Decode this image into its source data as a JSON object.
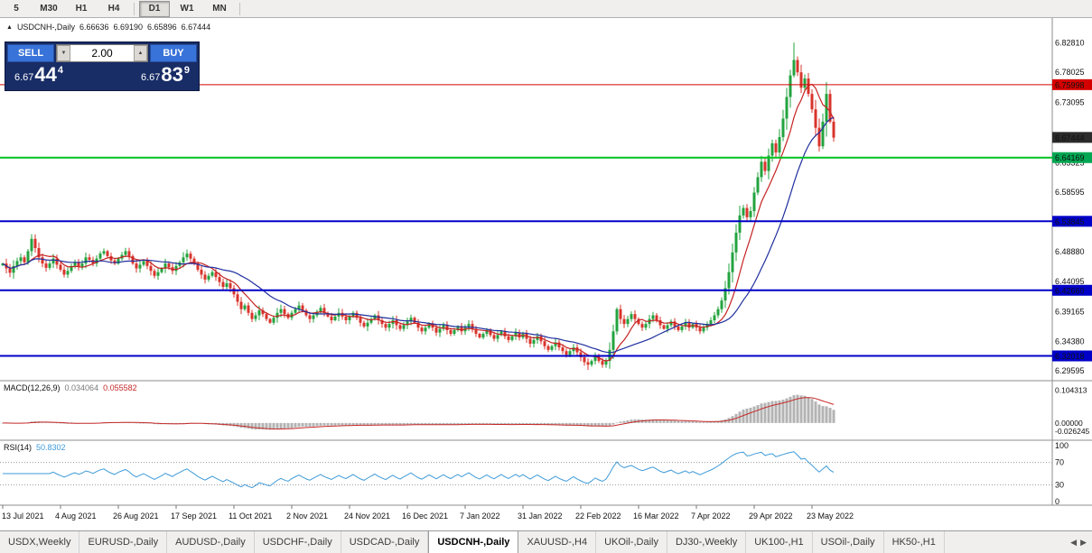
{
  "toolbar": {
    "timeframes": [
      {
        "label": "5"
      },
      {
        "label": "M30"
      },
      {
        "label": "H1"
      },
      {
        "label": "H4"
      },
      {
        "label": "D1",
        "active": true
      },
      {
        "label": "W1"
      },
      {
        "label": "MN"
      }
    ]
  },
  "symbol_header": {
    "collapse_icon": "▲",
    "title": "USDCNH-,Daily",
    "open": "6.66636",
    "high": "6.69190",
    "low": "6.65896",
    "close": "6.67444"
  },
  "trade_panel": {
    "sell_label": "SELL",
    "buy_label": "BUY",
    "volume": "2.00",
    "step_down_icon": "▼",
    "step_up_icon": "▲",
    "sell_price": {
      "prefix": "6.67",
      "big": "44",
      "sup": "4"
    },
    "buy_price": {
      "prefix": "6.67",
      "big": "83",
      "sup": "9"
    }
  },
  "chart_data": {
    "type": "candlestick",
    "symbol": "USDCNH-",
    "timeframe": "Daily",
    "title": "USDCNH-,Daily",
    "ylim": [
      6.28,
      6.868
    ],
    "x_axis": {
      "labels": [
        "13 Jul 2021",
        "4 Aug 2021",
        "26 Aug 2021",
        "17 Sep 2021",
        "11 Oct 2021",
        "2 Nov 2021",
        "24 Nov 2021",
        "16 Dec 2021",
        "7 Jan 2022",
        "31 Jan 2022",
        "22 Feb 2022",
        "16 Mar 2022",
        "7 Apr 2022",
        "29 Apr 2022",
        "23 May 2022"
      ],
      "label_every_n_candles": 16
    },
    "closes": [
      6.47,
      6.462,
      6.455,
      6.466,
      6.474,
      6.48,
      6.472,
      6.49,
      6.51,
      6.495,
      6.48,
      6.47,
      6.463,
      6.47,
      6.478,
      6.468,
      6.46,
      6.452,
      6.458,
      6.466,
      6.472,
      6.465,
      6.47,
      6.48,
      6.476,
      6.47,
      6.478,
      6.486,
      6.49,
      6.482,
      6.475,
      6.47,
      6.478,
      6.484,
      6.49,
      6.482,
      6.47,
      6.462,
      6.468,
      6.474,
      6.466,
      6.458,
      6.45,
      6.456,
      6.462,
      6.47,
      6.464,
      6.458,
      6.466,
      6.472,
      6.48,
      6.486,
      6.478,
      6.47,
      6.46,
      6.452,
      6.444,
      6.45,
      6.456,
      6.448,
      6.44,
      6.432,
      6.438,
      6.43,
      6.42,
      6.408,
      6.396,
      6.402,
      6.39,
      6.38,
      6.386,
      6.394,
      6.388,
      6.38,
      6.374,
      6.382,
      6.39,
      6.396,
      6.388,
      6.382,
      6.39,
      6.396,
      6.402,
      6.394,
      6.386,
      6.38,
      6.386,
      6.392,
      6.398,
      6.39,
      6.384,
      6.378,
      6.384,
      6.39,
      6.384,
      6.378,
      6.384,
      6.39,
      6.382,
      6.374,
      6.368,
      6.374,
      6.38,
      6.386,
      6.378,
      6.372,
      6.366,
      6.372,
      6.378,
      6.37,
      6.364,
      6.37,
      6.376,
      6.382,
      6.374,
      6.366,
      6.36,
      6.366,
      6.372,
      6.366,
      6.358,
      6.364,
      6.37,
      6.362,
      6.356,
      6.362,
      6.368,
      6.36,
      6.366,
      6.372,
      6.364,
      6.356,
      6.35,
      6.356,
      6.362,
      6.354,
      6.348,
      6.354,
      6.36,
      6.352,
      6.346,
      6.352,
      6.358,
      6.35,
      6.356,
      6.348,
      6.34,
      6.346,
      6.352,
      6.344,
      6.336,
      6.33,
      6.336,
      6.342,
      6.334,
      6.328,
      6.322,
      6.328,
      6.334,
      6.326,
      6.318,
      6.31,
      6.306,
      6.312,
      6.32,
      6.312,
      6.306,
      6.312,
      6.33,
      6.36,
      6.396,
      6.38,
      6.372,
      6.38,
      6.388,
      6.38,
      6.372,
      6.366,
      6.372,
      6.38,
      6.386,
      6.378,
      6.37,
      6.364,
      6.37,
      6.376,
      6.368,
      6.362,
      6.368,
      6.374,
      6.366,
      6.372,
      6.366,
      6.36,
      6.366,
      6.372,
      6.378,
      6.386,
      6.396,
      6.41,
      6.43,
      6.456,
      6.488,
      6.52,
      6.548,
      6.56,
      6.545,
      6.555,
      6.585,
      6.61,
      6.635,
      6.62,
      6.645,
      6.665,
      6.65,
      6.675,
      6.705,
      6.74,
      6.775,
      6.8,
      6.78,
      6.755,
      6.77,
      6.745,
      6.72,
      6.69,
      6.66,
      6.7,
      6.745,
      6.7,
      6.674
    ],
    "extreme_high": 6.8281,
    "extreme_low": 6.2975,
    "candle_up_color": "#23a33f",
    "candle_down_color": "#d8342c",
    "overlays": [
      {
        "name": "ma-fast",
        "type": "sma",
        "period": 8,
        "color": "#c62222"
      },
      {
        "name": "ma-slow",
        "type": "sma",
        "period": 21,
        "color": "#1f2f9e"
      }
    ],
    "hlines": [
      {
        "price": 6.75998,
        "color": "#d40000",
        "width": 1
      },
      {
        "price": 6.64169,
        "color": "#00c21e",
        "width": 2
      },
      {
        "price": 6.53845,
        "color": "#0000c8",
        "width": 2
      },
      {
        "price": 6.4266,
        "color": "#0000c8",
        "width": 2
      },
      {
        "price": 6.32018,
        "color": "#0000c8",
        "width": 2
      }
    ],
    "price_axis_labels": [
      "6.82810",
      "6.78025",
      "6.73095",
      "6.63325",
      "6.58595",
      "6.48880",
      "6.44095",
      "6.39165",
      "6.34380",
      "6.29595"
    ],
    "price_badges": [
      {
        "text": "6.75998",
        "color": "#d40000"
      },
      {
        "text": "6.67444",
        "color": "#2b2b2b"
      },
      {
        "text": "6.64169",
        "color": "#00a651"
      },
      {
        "text": "6.53845",
        "color": "#0000c8"
      },
      {
        "text": "6.42660",
        "color": "#0000c8"
      },
      {
        "text": "6.32018",
        "color": "#0000c8"
      }
    ],
    "current_price": "6.67444",
    "indicators": [
      {
        "name": "MACD",
        "label": "MACD(12,26,9)",
        "fast": 12,
        "slow": 26,
        "signal": 9,
        "values": [
          "0.034064",
          "0.055582"
        ],
        "value_colors": [
          "#7a7a7a",
          "#c62828"
        ],
        "axis_labels": [
          "0.104313",
          "0.00000",
          "-0.026245"
        ],
        "ylim": [
          -0.055,
          0.135
        ],
        "histogram_color": "#b3b3b3",
        "signal_color": "#c62828"
      },
      {
        "name": "RSI",
        "label": "RSI(14)",
        "period": 14,
        "values": [
          "50.8302"
        ],
        "value_colors": [
          "#3f9bd8"
        ],
        "axis_labels": [
          "100",
          "70",
          "30",
          "0"
        ],
        "levels": [
          70,
          30
        ],
        "ylim": [
          0,
          100
        ],
        "line_color": "#3f9bd8",
        "level_color": "#9a9a9a"
      }
    ]
  },
  "tabs": {
    "scroll_left_icon": "◀",
    "scroll_right_icon": "▶",
    "items": [
      {
        "label": "USDX,Weekly"
      },
      {
        "label": "EURUSD-,Daily"
      },
      {
        "label": "AUDUSD-,Daily"
      },
      {
        "label": "USDCHF-,Daily"
      },
      {
        "label": "USDCAD-,Daily"
      },
      {
        "label": "USDCNH-,Daily",
        "active": true
      },
      {
        "label": "XAUUSD-,H4"
      },
      {
        "label": "UKOil-,Daily"
      },
      {
        "label": "DJ30-,Weekly"
      },
      {
        "label": "UK100-,H1"
      },
      {
        "label": "USOil-,Daily"
      },
      {
        "label": "HK50-,H1"
      }
    ]
  }
}
